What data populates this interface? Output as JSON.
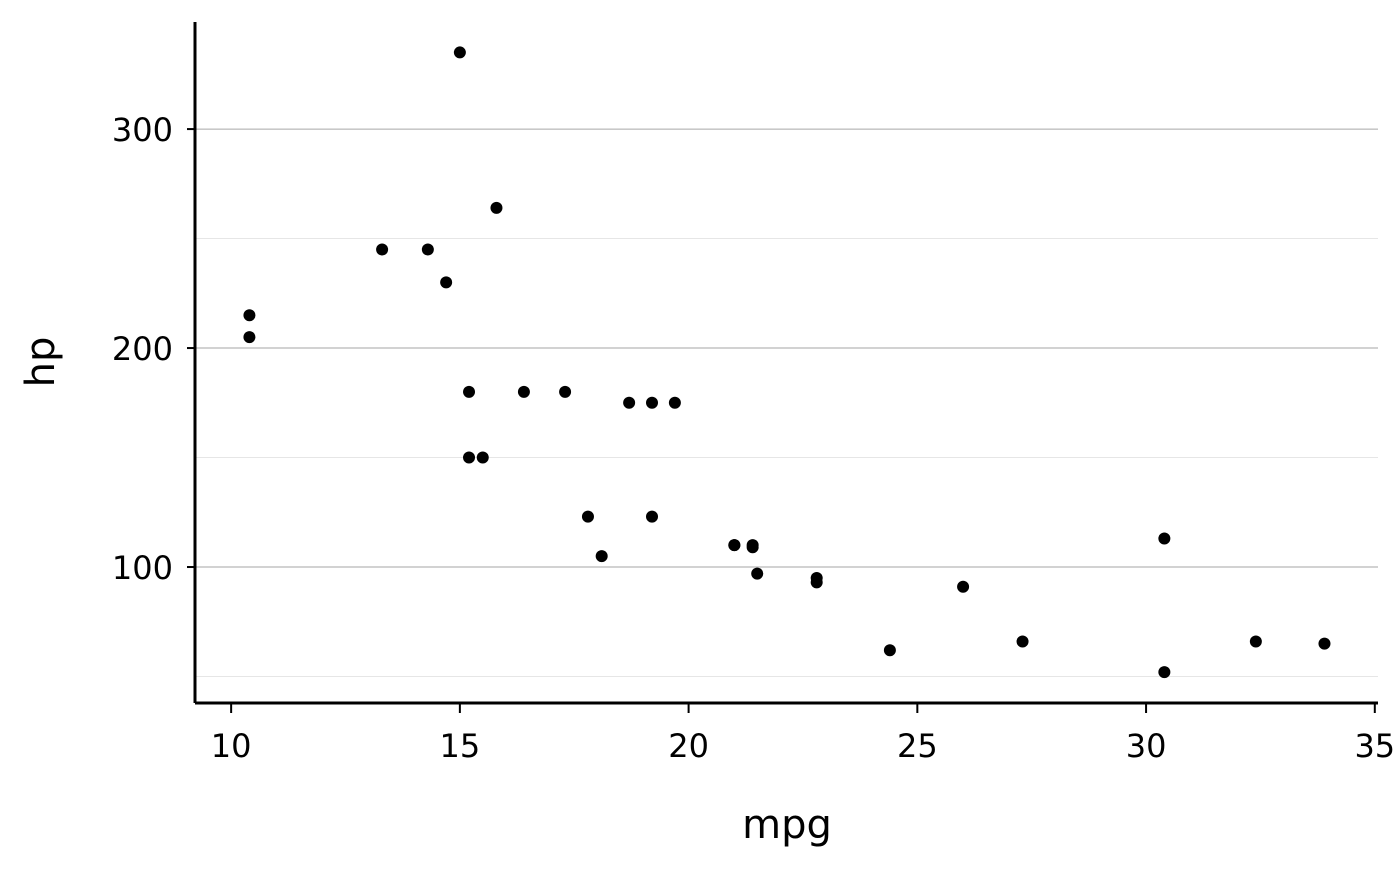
{
  "chart_data": {
    "type": "scatter",
    "x_label": "mpg",
    "y_label": "hp",
    "x": [
      21.0,
      21.0,
      22.8,
      21.4,
      18.7,
      18.1,
      14.3,
      24.4,
      22.8,
      19.2,
      17.8,
      16.4,
      17.3,
      15.2,
      10.4,
      10.4,
      14.7,
      32.4,
      30.4,
      33.9,
      21.5,
      15.5,
      15.2,
      13.3,
      19.2,
      27.3,
      26.0,
      30.4,
      15.8,
      19.7,
      15.0,
      21.4
    ],
    "values": [
      110,
      110,
      93,
      110,
      175,
      105,
      245,
      62,
      95,
      123,
      123,
      180,
      180,
      180,
      205,
      215,
      230,
      66,
      52,
      65,
      97,
      150,
      150,
      245,
      175,
      66,
      91,
      113,
      264,
      175,
      335,
      109
    ],
    "color": "#000000",
    "xlim": [
      9.21,
      35.07
    ],
    "xticks": [
      10,
      15,
      20,
      25,
      30,
      35
    ],
    "ylim": [
      37.9,
      348.9
    ],
    "yticks": [
      100,
      200,
      300
    ],
    "y_minor_grid": [
      50,
      150,
      250
    ],
    "grid": true
  }
}
